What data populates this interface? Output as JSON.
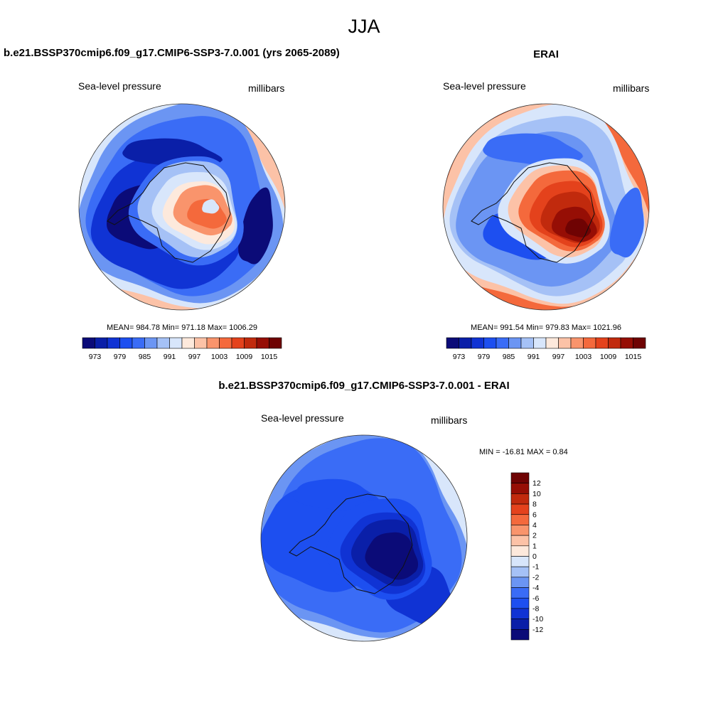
{
  "figure_title": "JJA",
  "chart_data": [
    {
      "type": "heatmap",
      "projection": "south-polar-stereographic",
      "title": "b.e21.BSSP370cmip6.f09_g17.CMIP6-SSP3-7.0.001 (yrs 2065-2089)",
      "left_label": "Sea-level pressure",
      "right_label": "millibars",
      "stats": {
        "mean": "984.78",
        "min": "971.18",
        "max": "1006.29"
      },
      "stats_text": "MEAN= 984.78  Min= 971.18  Max= 1006.29",
      "colorbar": {
        "orientation": "horizontal",
        "levels": [
          973,
          976,
          979,
          982,
          985,
          988,
          991,
          994,
          997,
          1000,
          1003,
          1006,
          1009,
          1012,
          1015
        ],
        "tick_labels": [
          "973",
          "979",
          "985",
          "991",
          "997",
          "1003",
          "1009",
          "1015"
        ]
      }
    },
    {
      "type": "heatmap",
      "projection": "south-polar-stereographic",
      "title": "ERAI",
      "left_label": "Sea-level pressure",
      "right_label": "millibars",
      "stats": {
        "mean": "991.54",
        "min": "979.83",
        "max": "1021.96"
      },
      "stats_text": "MEAN= 991.54  Min= 979.83  Max= 1021.96",
      "colorbar": {
        "orientation": "horizontal",
        "levels": [
          973,
          976,
          979,
          982,
          985,
          988,
          991,
          994,
          997,
          1000,
          1003,
          1006,
          1009,
          1012,
          1015
        ],
        "tick_labels": [
          "973",
          "979",
          "985",
          "991",
          "997",
          "1003",
          "1009",
          "1015"
        ]
      }
    },
    {
      "type": "heatmap",
      "projection": "south-polar-stereographic",
      "title": "b.e21.BSSP370cmip6.f09_g17.CMIP6-SSP3-7.0.001 - ERAI",
      "left_label": "Sea-level pressure",
      "right_label": "millibars",
      "stats": {
        "min": "-16.81",
        "max": "0.84"
      },
      "stats_text": "MIN = -16.81 MAX =   0.84",
      "colorbar": {
        "orientation": "vertical",
        "levels": [
          -12,
          -10,
          -8,
          -6,
          -4,
          -2,
          -1,
          0,
          1,
          2,
          4,
          6,
          8,
          10,
          12
        ],
        "tick_labels": [
          "12",
          "10",
          "8",
          "6",
          "4",
          "2",
          "1",
          "0",
          "-1",
          "-2",
          "-4",
          "-6",
          "-8",
          "-10",
          "-12"
        ]
      }
    }
  ],
  "palette": [
    "#0b0b78",
    "#0a1fa8",
    "#1033d4",
    "#1d4ff0",
    "#3a6cf6",
    "#6b95f3",
    "#a5c1f6",
    "#d8e6fb",
    "#fde9dc",
    "#fcc2a7",
    "#f9946c",
    "#f4693c",
    "#e4421c",
    "#c12a0d",
    "#960e05",
    "#6f0303"
  ]
}
